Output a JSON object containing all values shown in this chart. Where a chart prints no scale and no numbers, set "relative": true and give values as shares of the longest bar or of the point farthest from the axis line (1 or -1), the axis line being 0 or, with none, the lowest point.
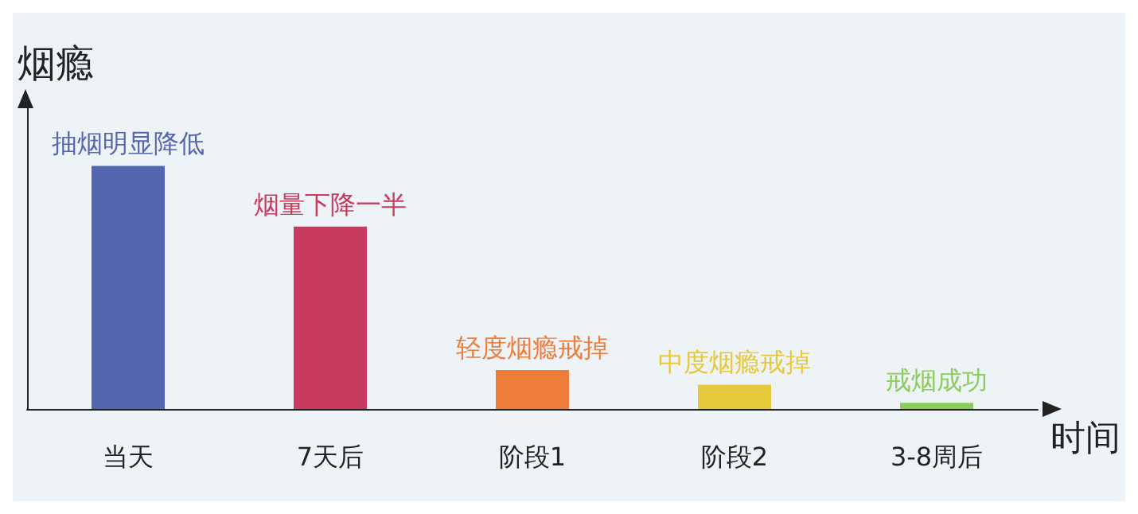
{
  "chart_data": {
    "type": "bar",
    "relative": true,
    "ylabel": "烟瘾",
    "xlabel": "时间",
    "categories": [
      "当天",
      "7天后",
      "阶段1",
      "阶段2",
      "3-8周后"
    ],
    "values": [
      1,
      0.75,
      0.16,
      0.1,
      0.025
    ],
    "colors": [
      "#5566b0",
      "#c83a5e",
      "#ef7d3a",
      "#e6c93a",
      "#8ccc5a"
    ],
    "annotations": [
      {
        "text": "抽烟明显降低",
        "x": "当天",
        "y": 1
      },
      {
        "text": "烟量下降一半",
        "x": "7天后",
        "y": 0.75
      },
      {
        "text": "轻度烟瘾戒掉",
        "x": "阶段1",
        "y": 0.16
      },
      {
        "text": "中度烟瘾戒掉",
        "x": "阶段2",
        "y": 0.1
      },
      {
        "text": "戒烟成功",
        "x": "3-8周后",
        "y": 0.025
      }
    ],
    "grid": false
  }
}
